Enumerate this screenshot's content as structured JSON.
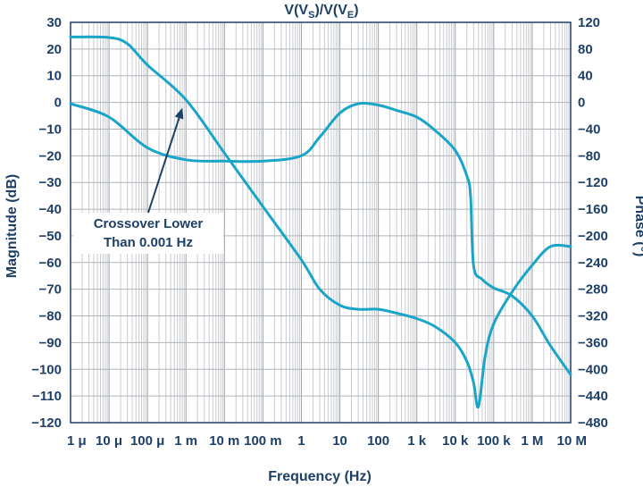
{
  "chart_data": {
    "type": "line",
    "title": "V(V",
    "title_sub1": "S",
    "title_mid": ")/V(V",
    "title_sub2": "E",
    "title_end": ")",
    "xlabel": "Frequency (Hz)",
    "ylabel_left": "Magnitude (dB)",
    "ylabel_right": "Phase (°)",
    "x_scale": "log",
    "xlim": [
      1e-06,
      10000000
    ],
    "ylim_left": [
      -120,
      30
    ],
    "ylim_right": [
      -480,
      120
    ],
    "x_ticks": [
      {
        "value": 1e-06,
        "label": "1 μ"
      },
      {
        "value": 1e-05,
        "label": "10 μ"
      },
      {
        "value": 0.0001,
        "label": "100 μ"
      },
      {
        "value": 0.001,
        "label": "1 m"
      },
      {
        "value": 0.01,
        "label": "10 m"
      },
      {
        "value": 0.1,
        "label": "100 m"
      },
      {
        "value": 1,
        "label": "1"
      },
      {
        "value": 10,
        "label": "10"
      },
      {
        "value": 100,
        "label": "100"
      },
      {
        "value": 1000,
        "label": "1 k"
      },
      {
        "value": 10000,
        "label": "10 k"
      },
      {
        "value": 100000,
        "label": "100 k"
      },
      {
        "value": 1000000,
        "label": "1 M"
      },
      {
        "value": 10000000,
        "label": "10 M"
      }
    ],
    "y_ticks_left": [
      "30",
      "20",
      "10",
      "0",
      "−10",
      "−20",
      "−30",
      "−40",
      "−50",
      "−60",
      "−70",
      "−80",
      "−90",
      "−100",
      "−110",
      "−120"
    ],
    "y_ticks_right": [
      "120",
      "80",
      "40",
      "0",
      "−40",
      "−80",
      "−120",
      "−160",
      "−200",
      "−240",
      "−280",
      "−320",
      "−360",
      "−400",
      "−440",
      "−480"
    ],
    "grid": true,
    "color": "#1aa5c8",
    "series": [
      {
        "axis": "left",
        "points": [
          [
            1e-06,
            24.5
          ],
          [
            1e-05,
            24.3
          ],
          [
            3e-05,
            22
          ],
          [
            0.0001,
            14
          ],
          [
            0.001,
            1
          ],
          [
            0.01,
            -19
          ],
          [
            0.1,
            -39
          ],
          [
            1,
            -59
          ],
          [
            3,
            -70
          ],
          [
            10,
            -76
          ],
          [
            30,
            -77.5
          ],
          [
            100,
            -77.5
          ],
          [
            300,
            -79
          ],
          [
            1000,
            -81
          ],
          [
            3000,
            -84
          ],
          [
            10000,
            -90
          ],
          [
            20000,
            -97
          ],
          [
            30000,
            -105
          ],
          [
            40000,
            -114
          ],
          [
            60000,
            -95
          ],
          [
            100000,
            -83
          ],
          [
            300000,
            -71
          ],
          [
            1000000,
            -61
          ],
          [
            3000000,
            -54
          ],
          [
            10000000,
            -54
          ]
        ]
      },
      {
        "axis": "right",
        "points": [
          [
            1e-06,
            -2
          ],
          [
            1e-05,
            -22
          ],
          [
            0.0001,
            -68
          ],
          [
            0.001,
            -86
          ],
          [
            0.01,
            -88
          ],
          [
            0.1,
            -88
          ],
          [
            1,
            -80
          ],
          [
            3,
            -52
          ],
          [
            10,
            -16
          ],
          [
            30,
            -2
          ],
          [
            100,
            -4
          ],
          [
            300,
            -12
          ],
          [
            1000,
            -22
          ],
          [
            3000,
            -42
          ],
          [
            10000,
            -72
          ],
          [
            20000,
            -110
          ],
          [
            25000,
            -140
          ],
          [
            30000,
            -245
          ],
          [
            50000,
            -265
          ],
          [
            100000,
            -278
          ],
          [
            300000,
            -290
          ],
          [
            1000000,
            -320
          ],
          [
            3000000,
            -365
          ],
          [
            10000000,
            -408
          ]
        ]
      }
    ],
    "annotation": {
      "lines": [
        "Crossover Lower",
        "Than 0.001 Hz"
      ],
      "arrow_to": [
        0.001,
        0
      ]
    }
  }
}
